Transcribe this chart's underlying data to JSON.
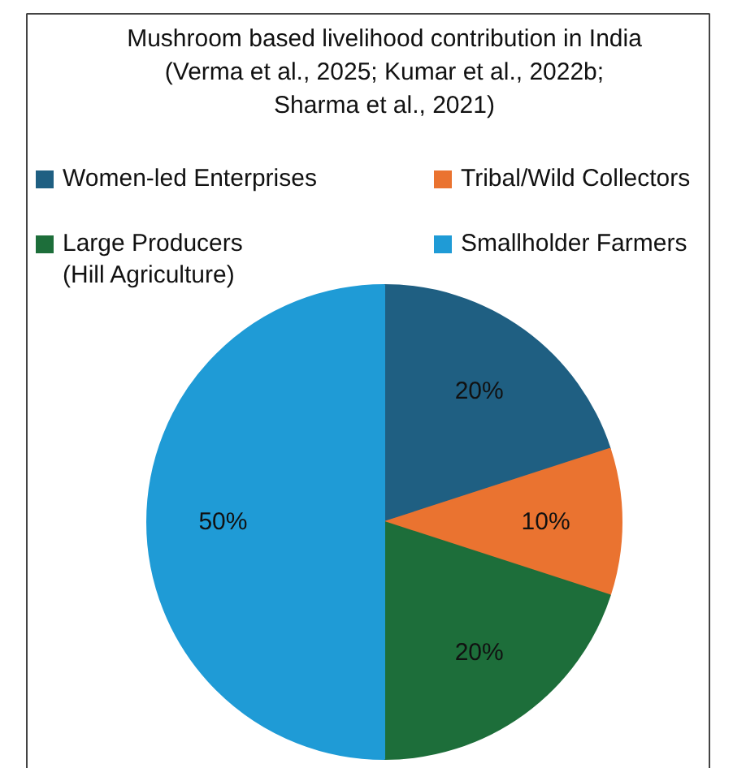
{
  "chart_data": {
    "type": "pie",
    "title": "Mushroom based livelihood contribution in India\n(Verma et al., 2025; Kumar et al., 2022b;\nSharma et al., 2021)",
    "categories": [
      "Women-led Enterprises",
      "Tribal/Wild Collectors",
      "Large Producers\n(Hill Agriculture)",
      "Smallholder Farmers"
    ],
    "values": [
      20,
      10,
      20,
      50
    ],
    "colors": [
      "#1f5f82",
      "#ea7330",
      "#1d6e3a",
      "#1f9bd6"
    ],
    "value_labels": [
      "20%",
      "10%",
      "20%",
      "50%"
    ],
    "legend": "top"
  }
}
